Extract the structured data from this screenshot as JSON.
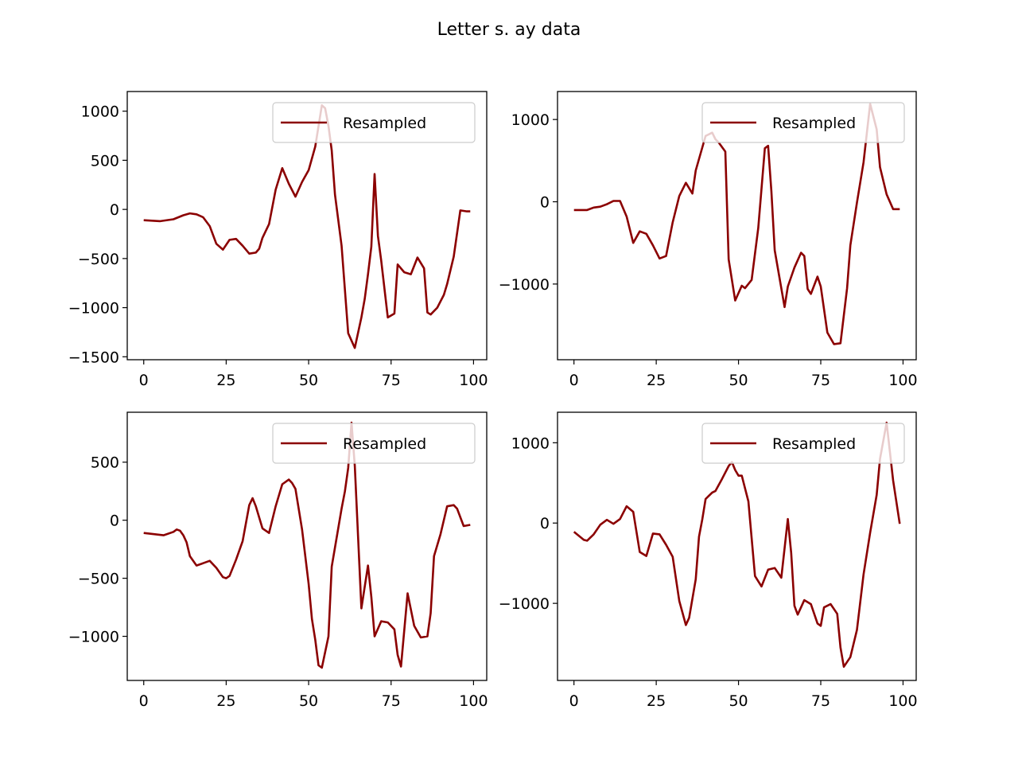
{
  "figure": {
    "title": "Letter s. ay data"
  },
  "colors": {
    "series": "#8b0000",
    "background": "#ffffff",
    "axes": "#000000"
  },
  "chart_data": [
    {
      "type": "line",
      "legend": {
        "position": "upper-right",
        "entries": [
          "Resampled"
        ]
      },
      "series": [
        {
          "name": "Resampled",
          "x": [
            0,
            5,
            9,
            12,
            14,
            16,
            18,
            20,
            22,
            24,
            26,
            28,
            30,
            32,
            34,
            35,
            36,
            38,
            40,
            42,
            44,
            46,
            48,
            50,
            52,
            54,
            55,
            56,
            57,
            58,
            60,
            62,
            64,
            66,
            67,
            68,
            69,
            70,
            71,
            72,
            74,
            76,
            77,
            79,
            81,
            83,
            85,
            86,
            87,
            89,
            91,
            92,
            94,
            96,
            98,
            99
          ],
          "y": [
            -110,
            -120,
            -100,
            -60,
            -40,
            -50,
            -80,
            -170,
            -350,
            -410,
            -310,
            -300,
            -370,
            -450,
            -440,
            -400,
            -290,
            -150,
            200,
            420,
            260,
            130,
            280,
            400,
            640,
            1060,
            1030,
            850,
            600,
            150,
            -370,
            -1260,
            -1410,
            -1100,
            -910,
            -660,
            -380,
            360,
            -270,
            -520,
            -1100,
            -1060,
            -560,
            -640,
            -660,
            -490,
            -600,
            -1050,
            -1070,
            -1000,
            -870,
            -760,
            -480,
            -10,
            -20,
            -20
          ],
          "xlim": [
            -5,
            104
          ],
          "ylim": [
            -1530,
            1200
          ],
          "xticks": [
            0,
            25,
            50,
            75,
            100
          ],
          "yticks": [
            -1500,
            -1000,
            -500,
            0,
            500,
            1000
          ]
        }
      ]
    },
    {
      "type": "line",
      "legend": {
        "position": "upper-right",
        "entries": [
          "Resampled"
        ]
      },
      "series": [
        {
          "name": "Resampled",
          "x": [
            0,
            4,
            6,
            8,
            10,
            12,
            14,
            16,
            18,
            20,
            22,
            24,
            26,
            28,
            30,
            32,
            34,
            36,
            37,
            38,
            40,
            42,
            43,
            44,
            46,
            47,
            49,
            51,
            52,
            54,
            56,
            58,
            59,
            60,
            61,
            64,
            65,
            67,
            69,
            70,
            71,
            72,
            74,
            75,
            77,
            79,
            81,
            83,
            84,
            86,
            88,
            90,
            92,
            93,
            95,
            97,
            99
          ],
          "y": [
            -100,
            -100,
            -70,
            -60,
            -30,
            10,
            10,
            -180,
            -500,
            -360,
            -390,
            -530,
            -690,
            -660,
            -250,
            70,
            230,
            100,
            380,
            520,
            800,
            840,
            760,
            720,
            610,
            -700,
            -1200,
            -1020,
            -1050,
            -950,
            -320,
            650,
            680,
            130,
            -590,
            -1280,
            -1030,
            -800,
            -620,
            -660,
            -1060,
            -1120,
            -910,
            -1030,
            -1590,
            -1730,
            -1720,
            -1050,
            -530,
            -10,
            480,
            1190,
            880,
            420,
            90,
            -90,
            -90
          ],
          "xlim": [
            -5,
            104
          ],
          "ylim": [
            -1920,
            1340
          ],
          "xticks": [
            0,
            25,
            50,
            75,
            100
          ],
          "yticks": [
            -1000,
            0,
            1000
          ]
        }
      ]
    },
    {
      "type": "line",
      "legend": {
        "position": "upper-right",
        "entries": [
          "Resampled"
        ]
      },
      "series": [
        {
          "name": "Resampled",
          "x": [
            0,
            6,
            9,
            10,
            11,
            12,
            13,
            14,
            16,
            18,
            20,
            22,
            24,
            25,
            26,
            28,
            30,
            32,
            33,
            34,
            36,
            38,
            40,
            42,
            44,
            45,
            46,
            48,
            50,
            51,
            52,
            53,
            54,
            56,
            57,
            60,
            61,
            62,
            63,
            64,
            66,
            68,
            69,
            70,
            72,
            74,
            76,
            77,
            78,
            80,
            82,
            84,
            86,
            87,
            88,
            90,
            92,
            94,
            95,
            97,
            99
          ],
          "y": [
            -110,
            -130,
            -100,
            -80,
            -90,
            -130,
            -190,
            -310,
            -390,
            -370,
            -350,
            -410,
            -490,
            -500,
            -480,
            -340,
            -180,
            130,
            190,
            120,
            -70,
            -110,
            120,
            310,
            350,
            320,
            270,
            -80,
            -550,
            -850,
            -1030,
            -1250,
            -1270,
            -1000,
            -400,
            100,
            250,
            450,
            840,
            470,
            -760,
            -390,
            -660,
            -1000,
            -870,
            -880,
            -940,
            -1160,
            -1260,
            -630,
            -910,
            -1010,
            -1000,
            -800,
            -310,
            -120,
            120,
            130,
            100,
            -50,
            -40
          ],
          "xlim": [
            -5,
            104
          ],
          "ylim": [
            -1380,
            930
          ],
          "xticks": [
            0,
            25,
            50,
            75,
            100
          ],
          "yticks": [
            -1000,
            -500,
            0,
            500
          ]
        }
      ]
    },
    {
      "type": "line",
      "legend": {
        "position": "upper-right",
        "entries": [
          "Resampled"
        ]
      },
      "series": [
        {
          "name": "Resampled",
          "x": [
            0,
            3,
            4,
            6,
            8,
            10,
            12,
            14,
            16,
            18,
            20,
            22,
            24,
            26,
            28,
            30,
            32,
            34,
            35,
            37,
            38,
            39,
            40,
            42,
            43,
            45,
            47,
            48,
            49,
            50,
            51,
            53,
            55,
            57,
            59,
            61,
            63,
            65,
            66,
            67,
            68,
            70,
            72,
            74,
            75,
            76,
            78,
            80,
            81,
            82,
            84,
            86,
            88,
            90,
            92,
            93,
            95,
            97,
            99
          ],
          "y": [
            -110,
            -210,
            -220,
            -140,
            -20,
            40,
            -10,
            50,
            210,
            140,
            -360,
            -410,
            -130,
            -140,
            -270,
            -420,
            -970,
            -1270,
            -1180,
            -700,
            -170,
            50,
            300,
            380,
            400,
            550,
            710,
            760,
            660,
            590,
            590,
            270,
            -660,
            -790,
            -580,
            -560,
            -680,
            50,
            -370,
            -1030,
            -1140,
            -960,
            -1010,
            -1250,
            -1280,
            -1050,
            -1010,
            -1130,
            -1550,
            -1790,
            -1670,
            -1330,
            -640,
            -120,
            350,
            800,
            1250,
            530,
            -10
          ],
          "xlim": [
            -5,
            104
          ],
          "ylim": [
            -1960,
            1380
          ],
          "xticks": [
            0,
            25,
            50,
            75,
            100
          ],
          "yticks": [
            -1000,
            0,
            1000
          ]
        }
      ]
    }
  ]
}
